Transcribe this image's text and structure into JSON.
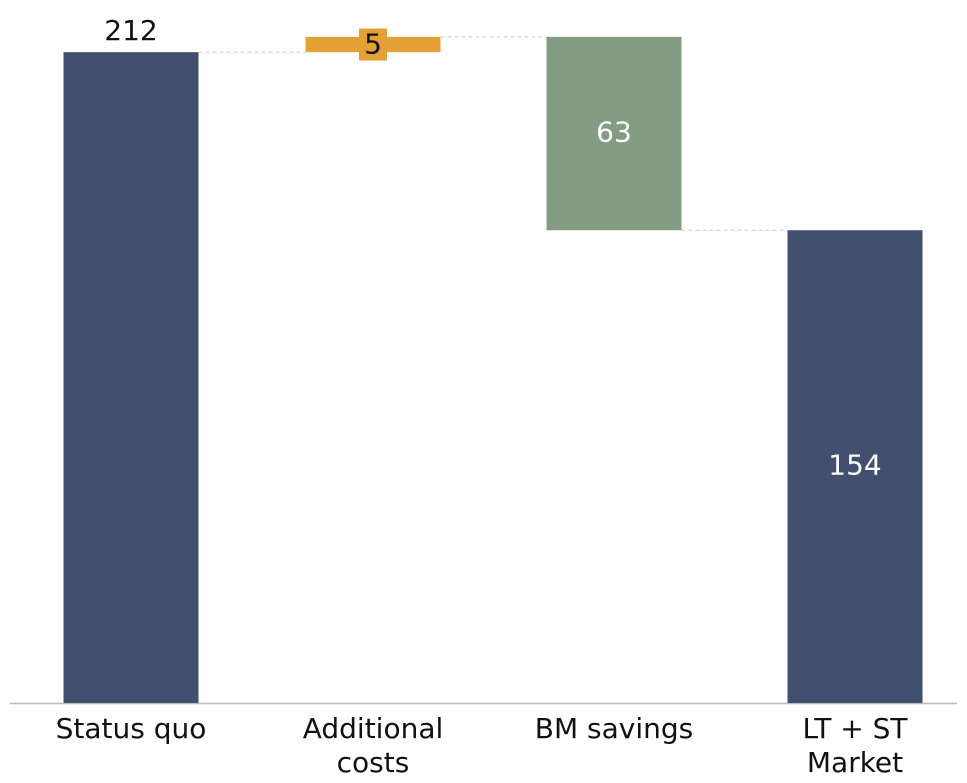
{
  "chart_data": {
    "type": "waterfall",
    "categories": [
      "Status quo",
      "Additional costs",
      "BM savings",
      "LT + ST Market"
    ],
    "values": [
      212,
      5,
      -63,
      154
    ],
    "value_labels": [
      "212",
      "5",
      "63",
      "154"
    ],
    "totals": [
      true,
      false,
      false,
      true
    ],
    "colors": [
      "#41506f",
      "#e3a035",
      "#859c84",
      "#41506f"
    ],
    "ylim": [
      0,
      229
    ]
  }
}
